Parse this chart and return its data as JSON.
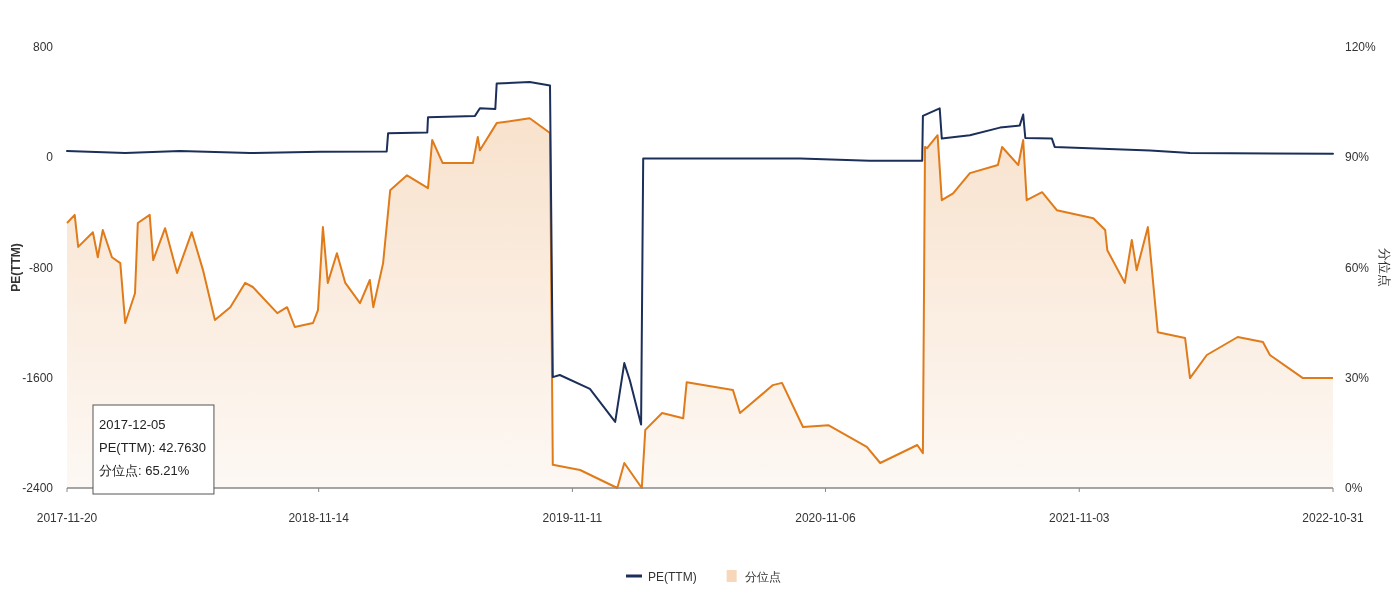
{
  "chart_data": {
    "type": "line",
    "ylabel": "PE(TTM)",
    "y2label": "分位点",
    "xlim": [
      "2017-11-20",
      "2022-10-31"
    ],
    "xticks": [
      {
        "value": "2017-11-20",
        "label": "2017-11-20"
      },
      {
        "value": "2018-11-14",
        "label": "2018-11-14"
      },
      {
        "value": "2019-11-11",
        "label": "2019-11-11"
      },
      {
        "value": "2020-11-06",
        "label": "2020-11-06"
      },
      {
        "value": "2021-11-03",
        "label": "2021-11-03"
      },
      {
        "value": "2022-10-31",
        "label": "2022-10-31"
      }
    ],
    "ylim": [
      -2400,
      800
    ],
    "yticks": [
      -2400,
      -1600,
      -800,
      0,
      800
    ],
    "y2lim": [
      0,
      120
    ],
    "y2ticks": [
      {
        "value": 0,
        "label": "0%"
      },
      {
        "value": 30,
        "label": "30%"
      },
      {
        "value": 60,
        "label": "60%"
      },
      {
        "value": 90,
        "label": "90%"
      },
      {
        "value": 120,
        "label": "120%"
      }
    ],
    "legend": "bottom",
    "annotations": [
      "2017-12-05",
      "PE(TTM): 42.7630",
      "分位点: 65.21%"
    ],
    "series": [
      {
        "name": "PE(TTM)",
        "color": "#1c2f5a",
        "x": [
          "2017-11-20",
          "2018-02-11",
          "2018-04-30",
          "2018-08-08",
          "2018-11-16",
          "2019-02-19",
          "2019-02-21",
          "2019-04-18",
          "2019-04-19",
          "2019-06-25",
          "2019-07-02",
          "2019-07-24",
          "2019-07-26",
          "2019-09-11",
          "2019-10-10",
          "2019-10-14",
          "2019-10-24",
          "2019-12-06",
          "2020-01-11",
          "2020-01-24",
          "2020-02-01",
          "2020-02-17",
          "2020-02-20",
          "2020-10-01",
          "2021-01-08",
          "2021-03-24",
          "2021-03-25",
          "2021-04-18",
          "2021-04-21",
          "2021-05-31",
          "2021-07-13",
          "2021-08-10",
          "2021-08-15",
          "2021-08-18",
          "2021-09-25",
          "2021-09-29",
          "2022-02-12",
          "2022-04-10",
          "2022-10-31"
        ],
        "values": [
          45,
          30,
          45,
          30,
          40,
          42,
          174,
          180,
          290,
          300,
          355,
          350,
          536,
          545,
          520,
          -1595,
          -1580,
          -1680,
          -1920,
          -1494,
          -1620,
          -1940,
          -10,
          -10,
          -25,
          -25,
          300,
          355,
          135,
          160,
          215,
          230,
          310,
          140,
          135,
          75,
          50,
          30,
          25
        ]
      },
      {
        "name": "分位点",
        "type": "area",
        "axis": "y2",
        "color": "#e07b1a",
        "x": [
          "2017-11-20",
          "2017-12-01",
          "2017-12-06",
          "2017-12-27",
          "2018-01-03",
          "2018-01-10",
          "2018-01-23",
          "2018-02-04",
          "2018-02-11",
          "2018-02-25",
          "2018-03-01",
          "2018-03-18",
          "2018-03-23",
          "2018-04-09",
          "2018-04-26",
          "2018-05-17",
          "2018-06-02",
          "2018-06-19",
          "2018-07-11",
          "2018-08-01",
          "2018-08-12",
          "2018-09-16",
          "2018-09-30",
          "2018-10-11",
          "2018-11-06",
          "2018-11-13",
          "2018-11-20",
          "2018-11-27",
          "2018-12-10",
          "2018-12-22",
          "2019-01-12",
          "2019-01-26",
          "2019-01-31",
          "2019-02-14",
          "2019-02-24",
          "2019-03-20",
          "2019-04-19",
          "2019-04-25",
          "2019-05-10",
          "2019-06-22",
          "2019-06-29",
          "2019-07-02",
          "2019-07-26",
          "2019-09-11",
          "2019-10-10",
          "2019-10-14",
          "2019-11-22",
          "2020-01-14",
          "2020-01-24",
          "2020-02-18",
          "2020-02-23",
          "2020-03-18",
          "2020-04-17",
          "2020-04-22",
          "2020-06-27",
          "2020-07-07",
          "2020-08-23",
          "2020-09-05",
          "2020-10-05",
          "2020-11-10",
          "2021-01-04",
          "2021-01-23",
          "2021-03-17",
          "2021-03-25",
          "2021-03-28",
          "2021-03-31",
          "2021-04-15",
          "2021-04-21",
          "2021-05-07",
          "2021-05-31",
          "2021-07-10",
          "2021-07-16",
          "2021-08-08",
          "2021-08-15",
          "2021-08-20",
          "2021-09-11",
          "2021-10-02",
          "2021-11-23",
          "2021-12-10",
          "2021-12-13",
          "2022-01-07",
          "2022-01-17",
          "2022-01-24",
          "2022-02-09",
          "2022-02-23",
          "2022-04-03",
          "2022-04-10",
          "2022-05-04",
          "2022-06-17",
          "2022-07-23",
          "2022-08-02",
          "2022-09-18",
          "2022-10-31"
        ],
        "values": [
          72.1,
          74.3,
          65.6,
          69.6,
          62.8,
          70.2,
          62.8,
          61.2,
          44.9,
          53,
          72.1,
          74.3,
          62,
          70.7,
          58.5,
          69.6,
          59.3,
          45.7,
          49.2,
          55.8,
          54.7,
          47.6,
          49.2,
          43.8,
          44.9,
          48.4,
          71,
          55.8,
          63.9,
          55.8,
          50.3,
          56.6,
          49.2,
          61.2,
          81,
          85.1,
          81.6,
          94.7,
          88.4,
          88.4,
          95.5,
          91.9,
          99.3,
          100.6,
          96.6,
          6.3,
          4.9,
          0,
          6.8,
          0,
          15.8,
          20.4,
          19,
          28.8,
          26.7,
          20.4,
          28,
          28.6,
          16.6,
          17.1,
          11.2,
          6.8,
          11.7,
          9.5,
          92.8,
          92.5,
          96,
          78.3,
          80.2,
          85.7,
          87.9,
          92.8,
          87.9,
          94.7,
          78.3,
          80.5,
          75.6,
          73.4,
          70.2,
          64.7,
          55.8,
          67.5,
          59.3,
          71,
          42.4,
          40.8,
          29.9,
          36.2,
          41.1,
          39.7,
          36.2,
          29.9,
          29.9
        ]
      }
    ]
  }
}
